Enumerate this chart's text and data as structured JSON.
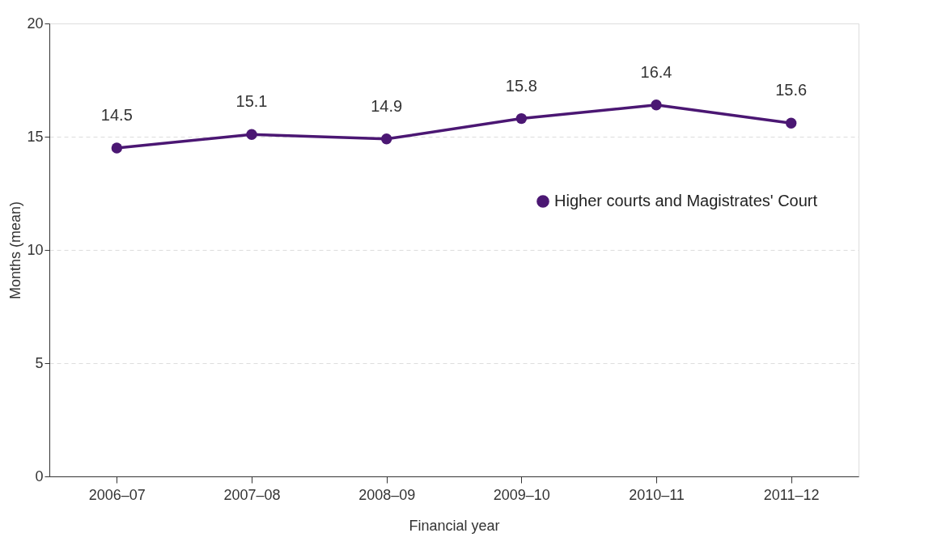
{
  "chart_data": {
    "type": "line",
    "xlabel": "Financial year",
    "ylabel": "Months (mean)",
    "categories": [
      "2006–07",
      "2007–08",
      "2008–09",
      "2009–10",
      "2010–11",
      "2011–12"
    ],
    "series": [
      {
        "name": "Higher courts and Magistrates' Court",
        "color": "#4b1773",
        "values": [
          14.5,
          15.1,
          14.9,
          15.8,
          16.4,
          15.6
        ]
      }
    ],
    "ylim": [
      0,
      20
    ],
    "yticks": [
      0,
      5,
      10,
      15,
      20
    ],
    "grid": "y",
    "legend": "right",
    "marker": "circle",
    "data_labels": true
  }
}
